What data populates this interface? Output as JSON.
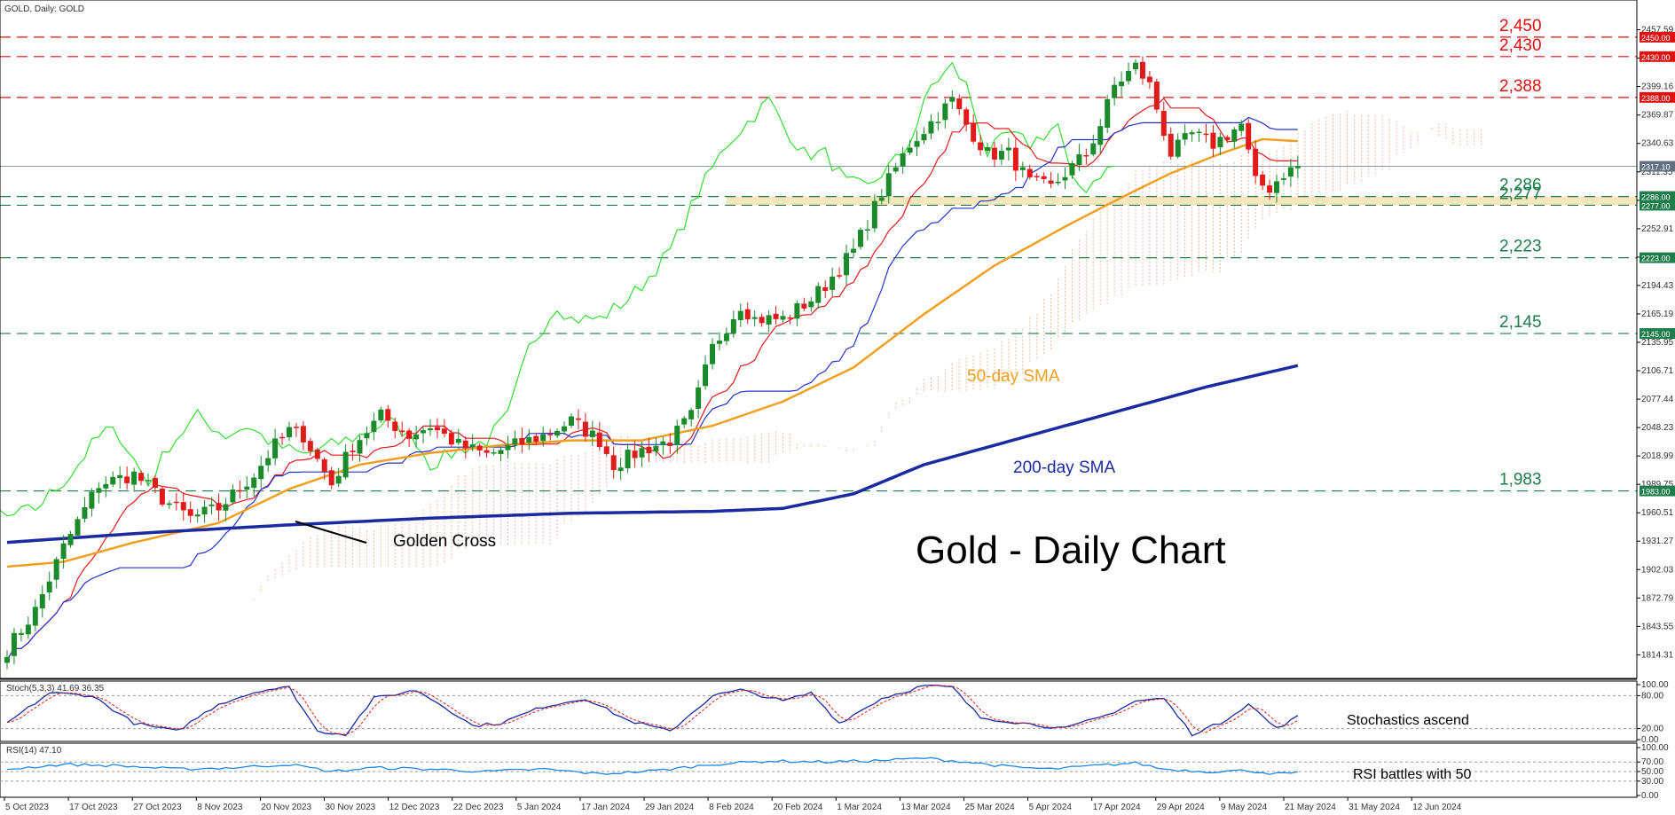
{
  "header": {
    "title": "GOLD, Daily:  GOLD"
  },
  "chart_data": {
    "type": "candlestick",
    "title": "Gold - Daily Chart",
    "y_ticks": [
      2457.59,
      2428.41,
      2399.16,
      2369.87,
      2340.63,
      2311.35,
      2282.06,
      2252.91,
      2223.63,
      2194.43,
      2165.19,
      2135.95,
      2106.71,
      2077.44,
      2048.23,
      2018.99,
      1989.75,
      1960.51,
      1931.27,
      1902.03,
      1872.79,
      1843.55,
      1814.31
    ],
    "y_range": [
      1790,
      2470
    ],
    "x_ticks": [
      "5 Oct 2023",
      "17 Oct 2023",
      "27 Oct 2023",
      "8 Nov 2023",
      "20 Nov 2023",
      "30 Nov 2023",
      "12 Dec 2023",
      "22 Dec 2023",
      "5 Jan 2024",
      "17 Jan 2024",
      "29 Jan 2024",
      "8 Feb 2024",
      "20 Feb 2024",
      "1 Mar 2024",
      "13 Mar 2024",
      "25 Mar 2024",
      "5 Apr 2024",
      "17 Apr 2024",
      "29 Apr 2024",
      "9 May 2024",
      "21 May 2024",
      "31 May 2024",
      "12 Jun 2024"
    ],
    "current_price": "2317.10",
    "levels": [
      {
        "value": 2450,
        "axis_label": "2450.00",
        "label": "2,450",
        "color": "#dd1111"
      },
      {
        "value": 2430,
        "axis_label": "2430.00",
        "label": "2,430",
        "color": "#dd1111"
      },
      {
        "value": 2388,
        "axis_label": "2388.00",
        "label": "2,388",
        "color": "#dd1111"
      },
      {
        "value": 2286,
        "axis_label": "2286.00",
        "label": "2,286",
        "color": "#1e7d4a"
      },
      {
        "value": 2277,
        "axis_label": "2277.00",
        "label": "2,277",
        "color": "#1e7d4a"
      },
      {
        "value": 2223,
        "axis_label": "2223.00",
        "label": "2,223",
        "color": "#1e7d4a"
      },
      {
        "value": 2145,
        "axis_label": "2145.00",
        "label": "2,145",
        "color": "#1e7d4a"
      },
      {
        "value": 1983,
        "axis_label": "1983.00",
        "label": "1,983",
        "color": "#1e7d4a"
      }
    ],
    "annotations": {
      "golden_cross": "Golden Cross",
      "sma50": "50-day SMA",
      "sma200": "200-day SMA",
      "stoch_note": "Stochastics ascend",
      "rsi_note": "RSI battles with 50"
    },
    "price_keypoints": [
      [
        0,
        1820
      ],
      [
        4,
        1860
      ],
      [
        8,
        1925
      ],
      [
        13,
        1990
      ],
      [
        18,
        2000
      ],
      [
        22,
        1975
      ],
      [
        26,
        1955
      ],
      [
        30,
        1965
      ],
      [
        35,
        2000
      ],
      [
        38,
        2030
      ],
      [
        40,
        2045
      ],
      [
        42,
        2040
      ],
      [
        44,
        2015
      ],
      [
        46,
        1990
      ],
      [
        49,
        2030
      ],
      [
        53,
        2060
      ],
      [
        57,
        2040
      ],
      [
        60,
        2050
      ],
      [
        64,
        2030
      ],
      [
        68,
        2020
      ],
      [
        72,
        2030
      ],
      [
        76,
        2040
      ],
      [
        80,
        2055
      ],
      [
        82,
        2045
      ],
      [
        84,
        2035
      ],
      [
        86,
        2010
      ],
      [
        90,
        2025
      ],
      [
        94,
        2035
      ],
      [
        97,
        2060
      ],
      [
        100,
        2130
      ],
      [
        104,
        2175
      ],
      [
        106,
        2160
      ],
      [
        110,
        2160
      ],
      [
        114,
        2180
      ],
      [
        116,
        2195
      ],
      [
        120,
        2230
      ],
      [
        124,
        2290
      ],
      [
        128,
        2340
      ],
      [
        132,
        2370
      ],
      [
        134,
        2385
      ],
      [
        136,
        2360
      ],
      [
        139,
        2330
      ],
      [
        142,
        2330
      ],
      [
        145,
        2300
      ],
      [
        148,
        2295
      ],
      [
        150,
        2310
      ],
      [
        153,
        2330
      ],
      [
        155,
        2360
      ],
      [
        157,
        2400
      ],
      [
        160,
        2420
      ],
      [
        162,
        2400
      ],
      [
        165,
        2330
      ],
      [
        168,
        2350
      ],
      [
        171,
        2340
      ],
      [
        173,
        2350
      ],
      [
        175,
        2360
      ],
      [
        177,
        2300
      ],
      [
        179,
        2295
      ],
      [
        181,
        2310
      ],
      [
        183,
        2317
      ]
    ],
    "sma50_keypoints": [
      [
        0,
        1905
      ],
      [
        8,
        1910
      ],
      [
        18,
        1930
      ],
      [
        30,
        1950
      ],
      [
        40,
        1985
      ],
      [
        50,
        2010
      ],
      [
        60,
        2022
      ],
      [
        70,
        2030
      ],
      [
        80,
        2035
      ],
      [
        90,
        2035
      ],
      [
        100,
        2050
      ],
      [
        110,
        2075
      ],
      [
        120,
        2110
      ],
      [
        130,
        2165
      ],
      [
        140,
        2215
      ],
      [
        150,
        2255
      ],
      [
        158,
        2285
      ],
      [
        165,
        2310
      ],
      [
        172,
        2330
      ],
      [
        178,
        2345
      ],
      [
        183,
        2343
      ]
    ],
    "sma200_keypoints": [
      [
        0,
        1930
      ],
      [
        20,
        1940
      ],
      [
        40,
        1948
      ],
      [
        60,
        1955
      ],
      [
        80,
        1960
      ],
      [
        100,
        1962
      ],
      [
        110,
        1965
      ],
      [
        120,
        1980
      ],
      [
        130,
        2010
      ],
      [
        140,
        2030
      ],
      [
        150,
        2050
      ],
      [
        160,
        2070
      ],
      [
        170,
        2090
      ],
      [
        183,
        2112
      ]
    ],
    "stoch_range": [
      0,
      100
    ],
    "stoch_ticks": [
      100,
      80,
      20,
      0
    ],
    "stoch_label": "Stoch(5,3,3) 41.69 36.35",
    "stoch_keypoints": [
      [
        0,
        30
      ],
      [
        6,
        85
      ],
      [
        12,
        80
      ],
      [
        18,
        30
      ],
      [
        24,
        15
      ],
      [
        30,
        65
      ],
      [
        36,
        90
      ],
      [
        40,
        95
      ],
      [
        44,
        15
      ],
      [
        48,
        10
      ],
      [
        52,
        75
      ],
      [
        58,
        90
      ],
      [
        62,
        60
      ],
      [
        66,
        25
      ],
      [
        70,
        30
      ],
      [
        76,
        60
      ],
      [
        82,
        75
      ],
      [
        88,
        35
      ],
      [
        94,
        15
      ],
      [
        100,
        80
      ],
      [
        104,
        90
      ],
      [
        110,
        70
      ],
      [
        114,
        85
      ],
      [
        118,
        30
      ],
      [
        124,
        75
      ],
      [
        130,
        98
      ],
      [
        134,
        95
      ],
      [
        138,
        40
      ],
      [
        144,
        30
      ],
      [
        150,
        20
      ],
      [
        156,
        45
      ],
      [
        160,
        70
      ],
      [
        164,
        75
      ],
      [
        168,
        10
      ],
      [
        172,
        30
      ],
      [
        176,
        65
      ],
      [
        180,
        20
      ],
      [
        183,
        41.69
      ]
    ],
    "rsi_range": [
      0,
      100
    ],
    "rsi_ticks": [
      100,
      70,
      50,
      30,
      0
    ],
    "rsi_label": "RSI(14) 47.10",
    "rsi_keypoints": [
      [
        0,
        55
      ],
      [
        8,
        65
      ],
      [
        16,
        62
      ],
      [
        24,
        55
      ],
      [
        32,
        58
      ],
      [
        40,
        65
      ],
      [
        46,
        50
      ],
      [
        52,
        58
      ],
      [
        60,
        55
      ],
      [
        68,
        50
      ],
      [
        76,
        55
      ],
      [
        84,
        45
      ],
      [
        92,
        52
      ],
      [
        100,
        65
      ],
      [
        108,
        72
      ],
      [
        116,
        70
      ],
      [
        124,
        73
      ],
      [
        130,
        78
      ],
      [
        136,
        70
      ],
      [
        142,
        60
      ],
      [
        148,
        55
      ],
      [
        154,
        62
      ],
      [
        160,
        68
      ],
      [
        164,
        55
      ],
      [
        170,
        50
      ],
      [
        176,
        52
      ],
      [
        180,
        45
      ],
      [
        183,
        47.1
      ]
    ]
  },
  "colors": {
    "bull": "#1a8a2a",
    "bear": "#e11a1a",
    "tenkan": "#e41a1c",
    "kijun": "#2233cc",
    "chikou": "#33dd33",
    "sma50": "#f0a020",
    "sma200": "#1a2aa0",
    "cloud": "#f2b89a",
    "zone": "#f7e3b5"
  }
}
